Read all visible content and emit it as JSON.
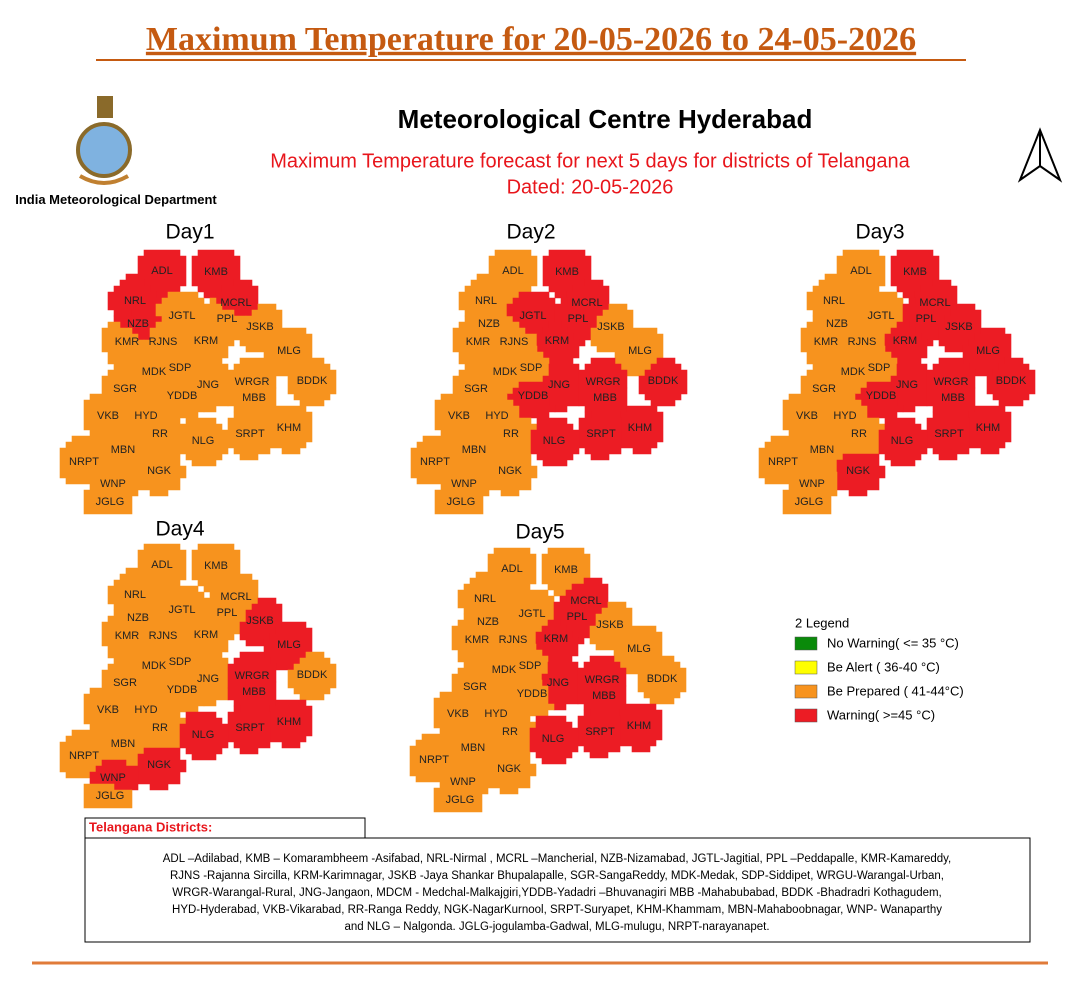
{
  "header": {
    "title": "Maximum Temperature for 20-05-2026 to 24-05-2026"
  },
  "logo_caption": "India Meteorological Department",
  "centre": "Meteorological Centre Hyderabad",
  "subtitle": "Maximum Temperature forecast for next 5 days for districts of Telangana",
  "dated": "Dated: 20-05-2026",
  "districts": [
    "ADL",
    "KMB",
    "NRL",
    "MCRL",
    "NZB",
    "JGTL",
    "PPL",
    "JSKB",
    "KMR",
    "RJNS",
    "KRM",
    "MLG",
    "MDK",
    "SDP",
    "BDDK",
    "SGR",
    "JNG",
    "WRGR",
    "YDDB",
    "MBB",
    "VKB",
    "HYD",
    "KHM",
    "RR",
    "SRPT",
    "NLG",
    "MBN",
    "NRPT",
    "NGK",
    "WNP",
    "JGLG"
  ],
  "days": [
    {
      "label": "Day1",
      "colors": [
        "#ec1c24",
        "#ec1c24",
        "#ec1c24",
        "#ec1c24",
        "#ec1c24",
        "#f7931e",
        "#f7931e",
        "#f7931e",
        "#f7931e",
        "#f7931e",
        "#f7931e",
        "#f7931e",
        "#f7931e",
        "#f7931e",
        "#f7931e",
        "#f7931e",
        "#f7931e",
        "#f7931e",
        "#f7931e",
        "#f7931e",
        "#f7931e",
        "#f7931e",
        "#f7931e",
        "#f7931e",
        "#f7931e",
        "#f7931e",
        "#f7931e",
        "#f7931e",
        "#f7931e",
        "#f7931e",
        "#f7931e"
      ]
    },
    {
      "label": "Day2",
      "colors": [
        "#f7931e",
        "#ec1c24",
        "#f7931e",
        "#ec1c24",
        "#f7931e",
        "#ec1c24",
        "#ec1c24",
        "#f7931e",
        "#f7931e",
        "#f7931e",
        "#ec1c24",
        "#f7931e",
        "#f7931e",
        "#f7931e",
        "#ec1c24",
        "#f7931e",
        "#ec1c24",
        "#ec1c24",
        "#ec1c24",
        "#ec1c24",
        "#f7931e",
        "#f7931e",
        "#ec1c24",
        "#f7931e",
        "#ec1c24",
        "#ec1c24",
        "#f7931e",
        "#f7931e",
        "#f7931e",
        "#f7931e",
        "#f7931e"
      ]
    },
    {
      "label": "Day3",
      "colors": [
        "#f7931e",
        "#ec1c24",
        "#f7931e",
        "#ec1c24",
        "#f7931e",
        "#f7931e",
        "#ec1c24",
        "#ec1c24",
        "#f7931e",
        "#f7931e",
        "#ec1c24",
        "#ec1c24",
        "#f7931e",
        "#f7931e",
        "#ec1c24",
        "#f7931e",
        "#ec1c24",
        "#ec1c24",
        "#ec1c24",
        "#ec1c24",
        "#f7931e",
        "#f7931e",
        "#ec1c24",
        "#f7931e",
        "#ec1c24",
        "#ec1c24",
        "#f7931e",
        "#f7931e",
        "#ec1c24",
        "#f7931e",
        "#f7931e"
      ]
    },
    {
      "label": "Day4",
      "colors": [
        "#f7931e",
        "#f7931e",
        "#f7931e",
        "#f7931e",
        "#f7931e",
        "#f7931e",
        "#f7931e",
        "#ec1c24",
        "#f7931e",
        "#f7931e",
        "#f7931e",
        "#ec1c24",
        "#f7931e",
        "#f7931e",
        "#f7931e",
        "#f7931e",
        "#f7931e",
        "#ec1c24",
        "#f7931e",
        "#ec1c24",
        "#f7931e",
        "#f7931e",
        "#ec1c24",
        "#f7931e",
        "#ec1c24",
        "#ec1c24",
        "#f7931e",
        "#f7931e",
        "#ec1c24",
        "#ec1c24",
        "#f7931e"
      ]
    },
    {
      "label": "Day5",
      "colors": [
        "#f7931e",
        "#f7931e",
        "#f7931e",
        "#ec1c24",
        "#f7931e",
        "#f7931e",
        "#ec1c24",
        "#f7931e",
        "#f7931e",
        "#f7931e",
        "#ec1c24",
        "#f7931e",
        "#f7931e",
        "#f7931e",
        "#f7931e",
        "#f7931e",
        "#ec1c24",
        "#ec1c24",
        "#f7931e",
        "#ec1c24",
        "#f7931e",
        "#f7931e",
        "#ec1c24",
        "#f7931e",
        "#ec1c24",
        "#ec1c24",
        "#f7931e",
        "#f7931e",
        "#f7931e",
        "#f7931e",
        "#f7931e"
      ]
    }
  ],
  "legend": {
    "title": "2 Legend",
    "items": [
      {
        "label": "No Warning( <= 35 °C)",
        "color": "#0a8a0a"
      },
      {
        "label": "Be Alert (  36-40 °C)",
        "color": "#ffff00"
      },
      {
        "label": "Be Prepared (  41-44°C)",
        "color": "#f7931e"
      },
      {
        "label": "Warning(  >=45 °C)",
        "color": "#ec1c24"
      }
    ]
  },
  "key": {
    "title": "Telangana Districts:",
    "lines": [
      "ADL –Adilabad, KMB – Komarambheem -Asifabad, NRL-Nirmal , MCRL –Mancherial, NZB-Nizamabad, JGTL-Jagitial, PPL –Peddapalle, KMR-Kamareddy,",
      "RJNS -Rajanna Sircilla, KRM-Karimnagar, JSKB -Jaya Shankar Bhupalapalle, SGR-SangaReddy, MDK-Medak, SDP-Siddipet, WRGU-Warangal-Urban,",
      "WRGR-Warangal-Rural, JNG-Jangaon, MDCM - Medchal-Malkajgiri,YDDB-Yadadri –Bhuvanagiri MBB -Mahabubabad, BDDK -Bhadradri Kothagudem,",
      "HYD-Hyderabad, VKB-Vikarabad, RR-Ranga Reddy, NGK-NagarKurnool, SRPT-Suryapet, KHM-Khammam, MBN-Mahaboobnagar, WNP- Wanaparthy",
      "and NLG – Nalgonda. JGLG-jogulamba-Gadwal, MLG-mulugu, NRPT-narayanapet."
    ]
  }
}
